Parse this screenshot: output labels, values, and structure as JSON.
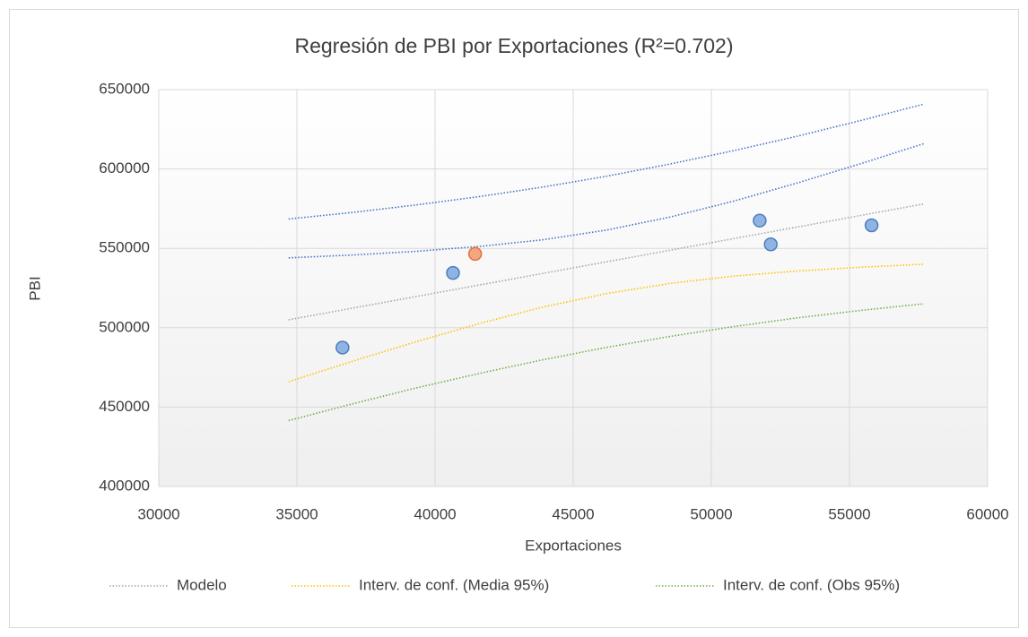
{
  "chart_data": {
    "type": "scatter",
    "title": "Regresión de PBI por Exportaciones (R²=0.702)",
    "x_label": "Exportaciones",
    "y_label": "PBI",
    "xlim": [
      30000,
      60000
    ],
    "xticks": [
      30000,
      35000,
      40000,
      45000,
      50000,
      55000,
      60000
    ],
    "ylim": [
      400000,
      650000
    ],
    "yticks": [
      400000,
      450000,
      500000,
      550000,
      600000,
      650000
    ],
    "grid": true,
    "legend": "bottom",
    "points": {
      "x": [
        36650,
        40650,
        41450,
        51750,
        52150,
        55800
      ],
      "y": [
        487500,
        534500,
        546500,
        567500,
        552500,
        564500
      ],
      "colors": [
        "#8fb4e3",
        "#8fb4e3",
        "#f4a582",
        "#8fb4e3",
        "#8fb4e3",
        "#8fb4e3"
      ]
    },
    "curve_x": [
      34700,
      37000,
      39300,
      41600,
      43900,
      46200,
      48500,
      50800,
      53100,
      55400,
      57700
    ],
    "series": [
      {
        "name": "Modelo",
        "color": "#a6a6a6",
        "values": [
          505000,
          512300,
          519600,
          526900,
          534200,
          541500,
          548800,
          556100,
          563400,
          570700,
          578000
        ]
      },
      {
        "name": "Interv. de conf. (Media 95%)",
        "color": "#ffc000",
        "upper_color": "#4472c4",
        "values": [
          466000,
          478800,
          491100,
          502600,
          513000,
          521500,
          527900,
          532500,
          535700,
          538100,
          540000
        ],
        "upper": [
          544000,
          545800,
          548100,
          551200,
          555400,
          561500,
          569700,
          579700,
          591100,
          603300,
          616000
        ]
      },
      {
        "name": "Interv. de conf. (Obs 95%)",
        "color": "#70ad47",
        "upper_color": "#4472c4",
        "values": [
          441500,
          452000,
          462000,
          471200,
          479800,
          487600,
          494500,
          500700,
          506200,
          510900,
          515100
        ],
        "upper": [
          568500,
          572600,
          577300,
          582600,
          588600,
          595400,
          603100,
          611500,
          620600,
          630500,
          640900
        ]
      }
    ]
  }
}
